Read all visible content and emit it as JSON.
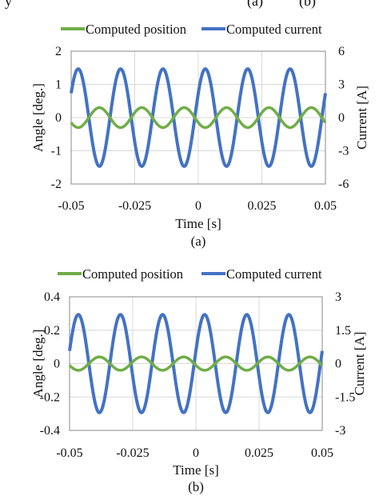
{
  "top_text": {
    "left": "y",
    "middle": "(a)",
    "right": "(b)"
  },
  "colors": {
    "position": "#70ad47",
    "current": "#4472c4",
    "grid": "#d9d9d9",
    "axis": "#888888"
  },
  "chart_data": [
    {
      "type": "line",
      "caption": "(a)",
      "xlabel": "Time [s]",
      "ylabel": "Angle [deg.]",
      "y2label": "Current [A]",
      "xlim": [
        -0.05,
        0.05
      ],
      "ylim": [
        -2,
        2
      ],
      "y2lim": [
        -6,
        6
      ],
      "xticks": [
        "-0.05",
        "-0.025",
        "0",
        "0.025",
        "0.05"
      ],
      "yticks": [
        "2",
        "1",
        "0",
        "-1",
        "-2"
      ],
      "y2ticks": [
        "6",
        "3",
        "0",
        "-3",
        "-6"
      ],
      "legend": "top-center",
      "series": [
        {
          "name": "Computed position",
          "axis": "left",
          "waveform": "sine",
          "amplitude": 0.3,
          "frequency_hz": 60,
          "phase_deg": 210
        },
        {
          "name": "Computed current",
          "axis": "right",
          "waveform": "sine",
          "amplitude": 4.4,
          "frequency_hz": 60,
          "phase_deg": 30
        }
      ]
    },
    {
      "type": "line",
      "caption": "(b)",
      "xlabel": "Time [s]",
      "ylabel": "Angle [deg.]",
      "y2label": "Current [A]",
      "xlim": [
        -0.05,
        0.05
      ],
      "ylim": [
        -0.4,
        0.4
      ],
      "y2lim": [
        -3,
        3
      ],
      "xticks": [
        "-0.05",
        "-0.025",
        "0",
        "0.025",
        "0.05"
      ],
      "yticks": [
        "0.4",
        "0.2",
        "0",
        "-0.2",
        "-0.4"
      ],
      "y2ticks": [
        "3",
        "1.5",
        "0",
        "-1.5",
        "-3"
      ],
      "legend": "top-center",
      "series": [
        {
          "name": "Computed position",
          "axis": "left",
          "waveform": "sine",
          "amplitude": 0.04,
          "frequency_hz": 60,
          "phase_deg": 195
        },
        {
          "name": "Computed current",
          "axis": "right",
          "waveform": "sine",
          "amplitude": 2.2,
          "frequency_hz": 60,
          "phase_deg": 15
        }
      ]
    }
  ]
}
